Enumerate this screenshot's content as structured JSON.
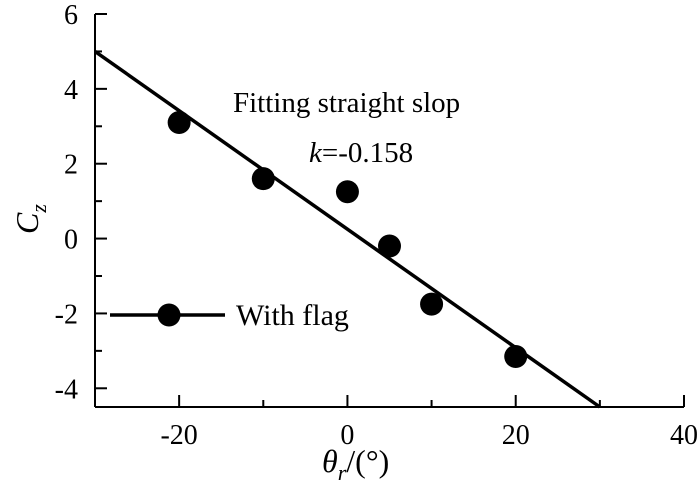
{
  "chart_data": {
    "type": "scatter",
    "title": "",
    "xlabel": {
      "symbol": "θ",
      "subscript": "r",
      "unit": "/(°)"
    },
    "ylabel": {
      "symbol": "C",
      "subscript": "z"
    },
    "xlim": [
      -30,
      40
    ],
    "ylim": [
      -4.5,
      6
    ],
    "x_ticks": [
      -20,
      0,
      20,
      40
    ],
    "x_tick_labels": [
      "-20",
      "0",
      "20",
      "40"
    ],
    "x_minor_ticks": [
      -10,
      10,
      30
    ],
    "y_ticks": [
      -4,
      -2,
      0,
      2,
      4,
      6
    ],
    "y_tick_labels": [
      "-4",
      "-2",
      "0",
      "2",
      "4",
      "6"
    ],
    "y_minor_ticks": [
      -3,
      -1,
      1,
      3,
      5
    ],
    "grid": false,
    "legend": {
      "position": "left-lower",
      "label": "With flag"
    },
    "series": [
      {
        "name": "With flag",
        "marker": "filled-circle",
        "x": [
          -20,
          -10,
          0,
          5,
          10,
          20
        ],
        "y": [
          3.1,
          1.6,
          1.25,
          -0.2,
          -1.75,
          -3.15
        ]
      }
    ],
    "fit_line": {
      "slope": -0.158,
      "x": [
        -30,
        30
      ],
      "y": [
        5.0,
        -4.5
      ]
    },
    "annotations": {
      "line1": "Fitting straight slop",
      "k_symbol": "k",
      "k_value": "=-0.158"
    },
    "colors": {
      "line": "#000000",
      "marker": "#000000"
    }
  }
}
